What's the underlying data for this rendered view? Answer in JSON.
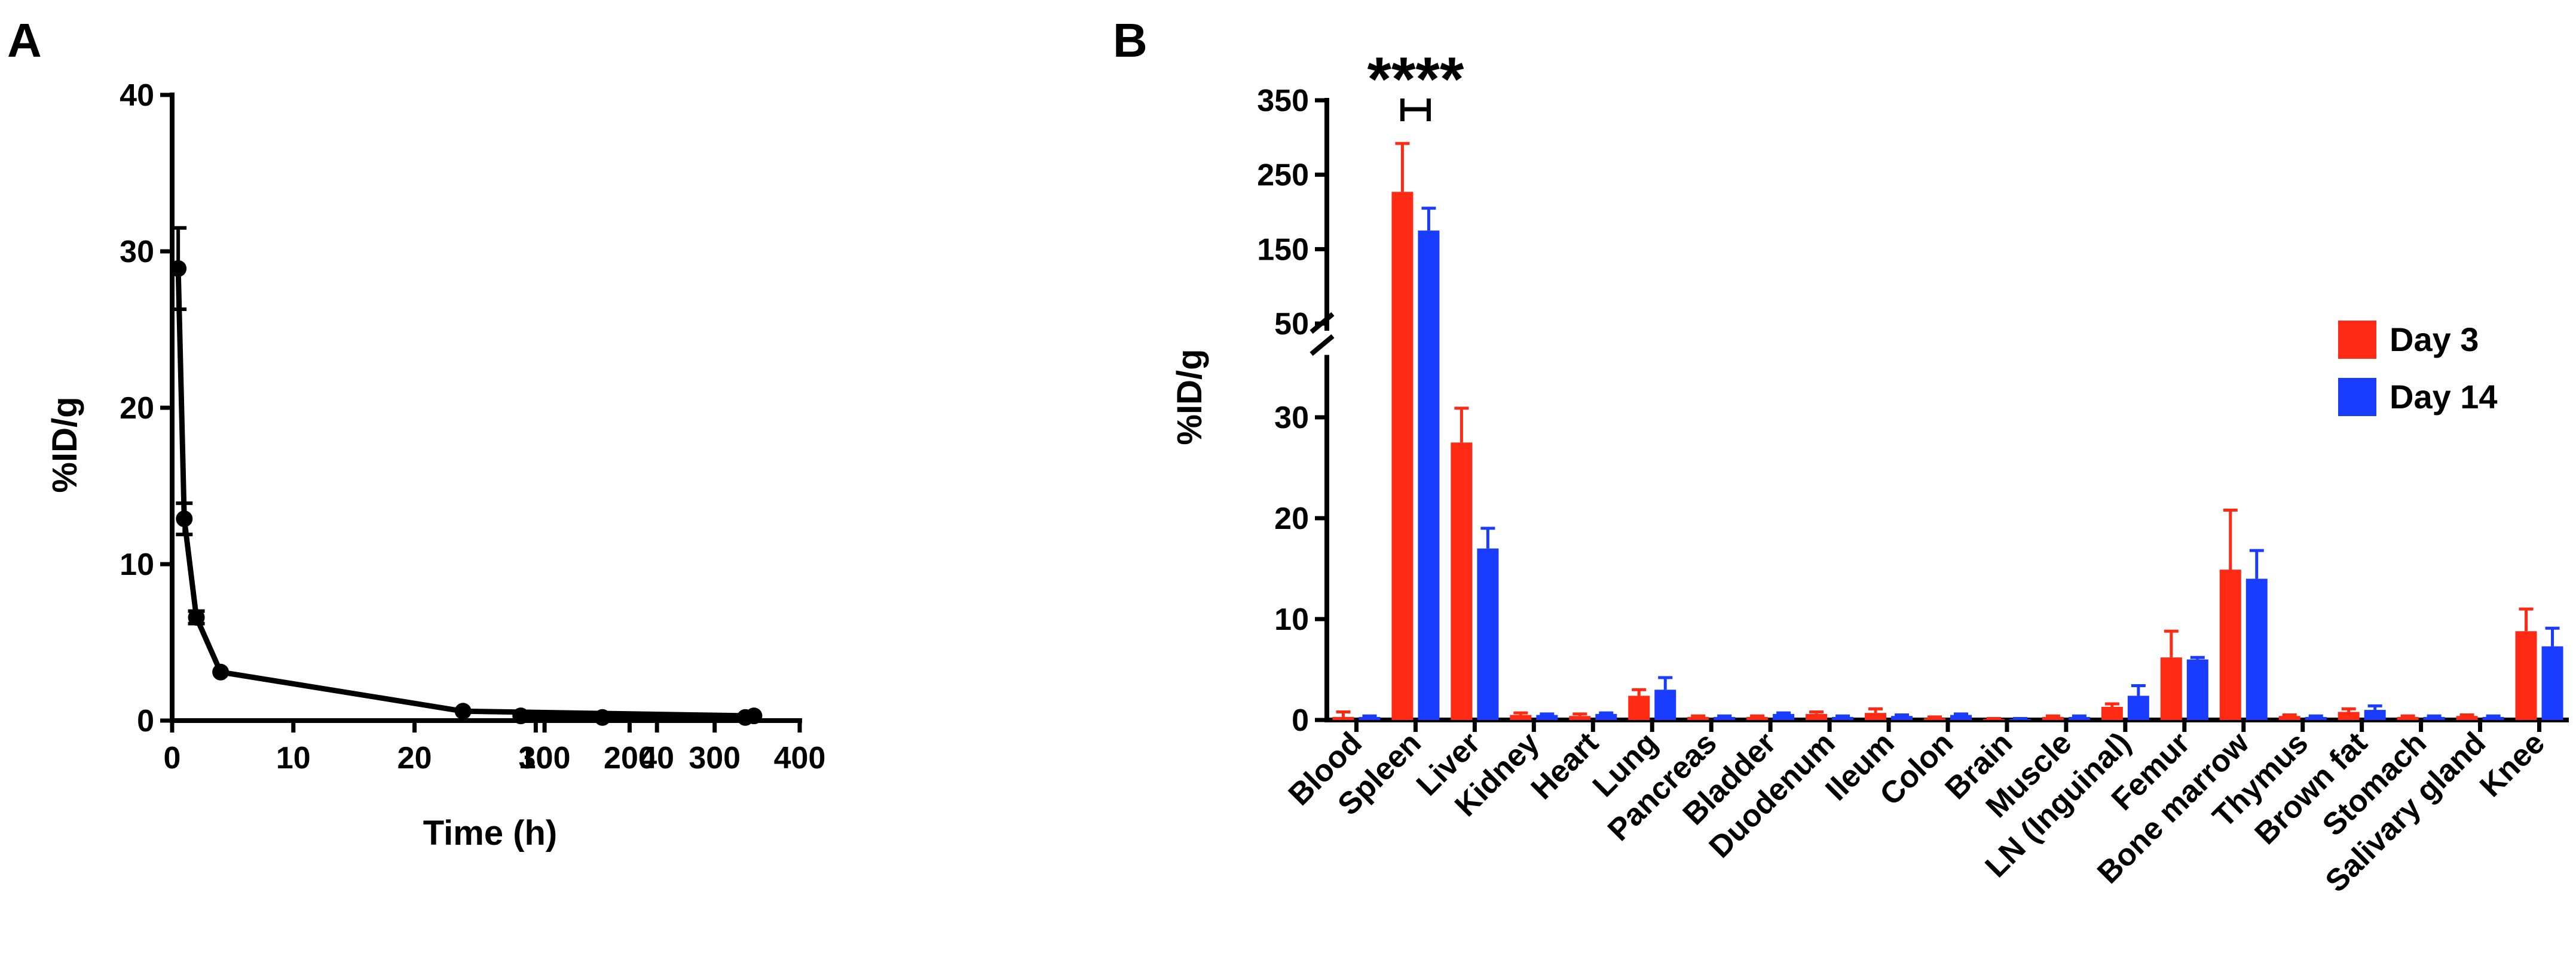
{
  "colors": {
    "day3": "#ff2a14",
    "day14": "#1a3cff",
    "axis": "#000000",
    "line": "#000000"
  },
  "chart_data": [
    {
      "panel": "A",
      "type": "line",
      "title": "",
      "xlabel": "Time (h)",
      "ylabel": "%ID/g",
      "ylim": [
        0,
        40
      ],
      "yticks": [
        "0",
        "10",
        "20",
        "30",
        "40"
      ],
      "xaxis_segments": [
        {
          "range": [
            0,
            50
          ],
          "ticks": [
            "0",
            "10",
            "20",
            "30",
            "40"
          ]
        },
        {
          "range": [
            50,
            400
          ],
          "ticks": [
            "100",
            "200",
            "300",
            "400"
          ]
        }
      ],
      "x": [
        0.5,
        1,
        2,
        4,
        24,
        48,
        72,
        168,
        336
      ],
      "y": [
        28.9,
        12.9,
        6.6,
        3.1,
        0.6,
        0.3,
        0.3,
        0.2,
        0.2
      ],
      "error": [
        2.6,
        1.0,
        0.4,
        0.1,
        0.1,
        0.05,
        0.05,
        0.05,
        0.05
      ]
    },
    {
      "panel": "B",
      "type": "bar",
      "title": "",
      "xlabel": "",
      "ylabel": "%ID/g",
      "ylim_lower": [
        0,
        35
      ],
      "ylim_upper": [
        50,
        350
      ],
      "yticks_lower": [
        "0",
        "10",
        "20",
        "30"
      ],
      "yticks_upper": [
        "50",
        "150",
        "250",
        "350"
      ],
      "categories": [
        "Blood",
        "Spleen",
        "Liver",
        "Kidney",
        "Heart",
        "Lung",
        "Pancreas",
        "Bladder",
        "Duodenum",
        "Ileum",
        "Colon",
        "Brain",
        "Muscle",
        "LN (Inguinal)",
        "Femur",
        "Bone marrow",
        "Thymus",
        "Brown fat",
        "Stomach",
        "Salivary gland",
        "Knee"
      ],
      "series": [
        {
          "name": "Day 3",
          "values": [
            0.3,
            227,
            27.5,
            0.5,
            0.4,
            2.4,
            0.3,
            0.3,
            0.6,
            0.7,
            0.2,
            0.1,
            0.3,
            1.3,
            6.2,
            14.9,
            0.4,
            0.8,
            0.3,
            0.4,
            8.8
          ],
          "errors": [
            0.5,
            65,
            3.4,
            0.2,
            0.2,
            0.6,
            0.1,
            0.1,
            0.2,
            0.4,
            0.1,
            0.05,
            0.1,
            0.3,
            2.6,
            5.9,
            0.1,
            0.3,
            0.1,
            0.1,
            2.2
          ]
        },
        {
          "name": "Day 14",
          "values": [
            0.3,
            175,
            17.0,
            0.5,
            0.6,
            3.0,
            0.3,
            0.6,
            0.3,
            0.4,
            0.5,
            0.1,
            0.3,
            2.4,
            6.0,
            14.0,
            0.3,
            1.0,
            0.3,
            0.3,
            7.3
          ],
          "errors": [
            0.1,
            30,
            2.0,
            0.1,
            0.1,
            1.2,
            0.1,
            0.1,
            0.1,
            0.1,
            0.1,
            0.05,
            0.1,
            1.0,
            0.2,
            2.8,
            0.1,
            0.4,
            0.1,
            0.1,
            1.8
          ]
        }
      ],
      "annotation": {
        "text": "****",
        "category": "Spleen"
      },
      "legend": {
        "position": "right",
        "entries": [
          "Day 3",
          "Day 14"
        ]
      }
    }
  ]
}
